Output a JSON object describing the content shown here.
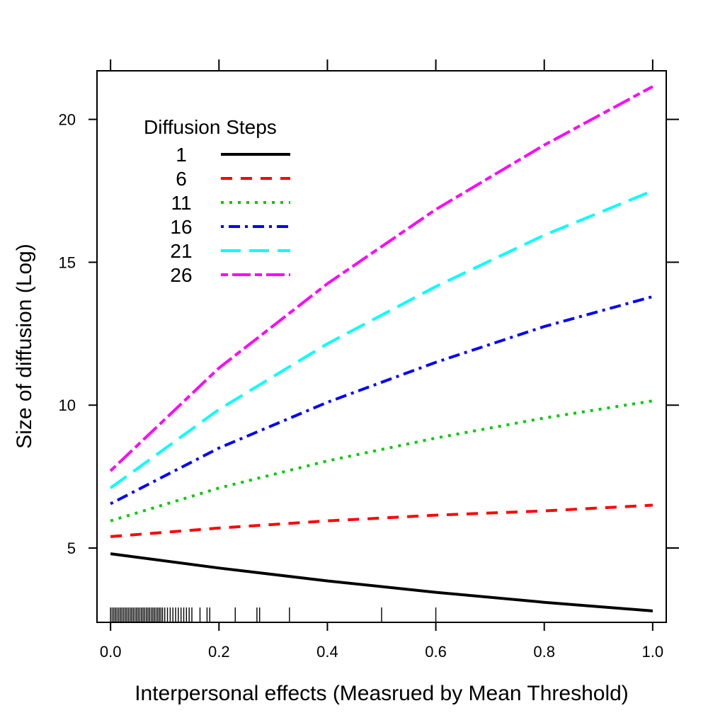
{
  "chart_data": {
    "type": "line",
    "title": "",
    "xlabel": "Interpersonal effects (Measrued by Mean Threshold)",
    "ylabel": "Size of diffusion (Log)",
    "xlim": [
      -0.025,
      1.025
    ],
    "ylim": [
      2.4,
      21.7
    ],
    "xticks": [
      "0.0",
      "0.2",
      "0.4",
      "0.6",
      "0.8",
      "1.0"
    ],
    "yticks": [
      "5",
      "10",
      "15",
      "20"
    ],
    "grid": false,
    "legend": {
      "title": "Diffusion  Steps",
      "placement": "top-left"
    },
    "x": [
      0.0,
      0.2,
      0.4,
      0.6,
      0.8,
      1.0
    ],
    "series": [
      {
        "name": "1",
        "color": "#000000",
        "dash": "solid",
        "values": [
          4.8,
          4.3,
          3.85,
          3.45,
          3.1,
          2.8
        ]
      },
      {
        "name": "6",
        "color": "#ff0000",
        "dash": "dashed",
        "values": [
          5.4,
          5.7,
          5.95,
          6.15,
          6.3,
          6.5
        ]
      },
      {
        "name": "11",
        "color": "#00cc00",
        "dash": "dotted",
        "values": [
          5.95,
          7.1,
          8.05,
          8.85,
          9.55,
          10.15
        ]
      },
      {
        "name": "16",
        "color": "#0000ff",
        "dash": "dotdash",
        "values": [
          6.55,
          8.5,
          10.1,
          11.5,
          12.75,
          13.8
        ]
      },
      {
        "name": "21",
        "color": "#00ffff",
        "dash": "longdash",
        "values": [
          7.1,
          9.85,
          12.15,
          14.15,
          15.95,
          17.5
        ]
      },
      {
        "name": "26",
        "color": "#ff00ff",
        "dash": "twodash",
        "values": [
          7.7,
          11.3,
          14.25,
          16.85,
          19.1,
          21.15
        ]
      }
    ],
    "rug": [
      0.0,
      0.003,
      0.006,
      0.009,
      0.012,
      0.015,
      0.018,
      0.021,
      0.024,
      0.027,
      0.03,
      0.033,
      0.036,
      0.039,
      0.042,
      0.045,
      0.048,
      0.051,
      0.054,
      0.057,
      0.06,
      0.063,
      0.066,
      0.069,
      0.072,
      0.075,
      0.078,
      0.081,
      0.084,
      0.087,
      0.09,
      0.093,
      0.096,
      0.1,
      0.105,
      0.11,
      0.115,
      0.12,
      0.125,
      0.13,
      0.135,
      0.14,
      0.145,
      0.15,
      0.165,
      0.178,
      0.183,
      0.23,
      0.27,
      0.275,
      0.33,
      0.5,
      0.6
    ]
  }
}
